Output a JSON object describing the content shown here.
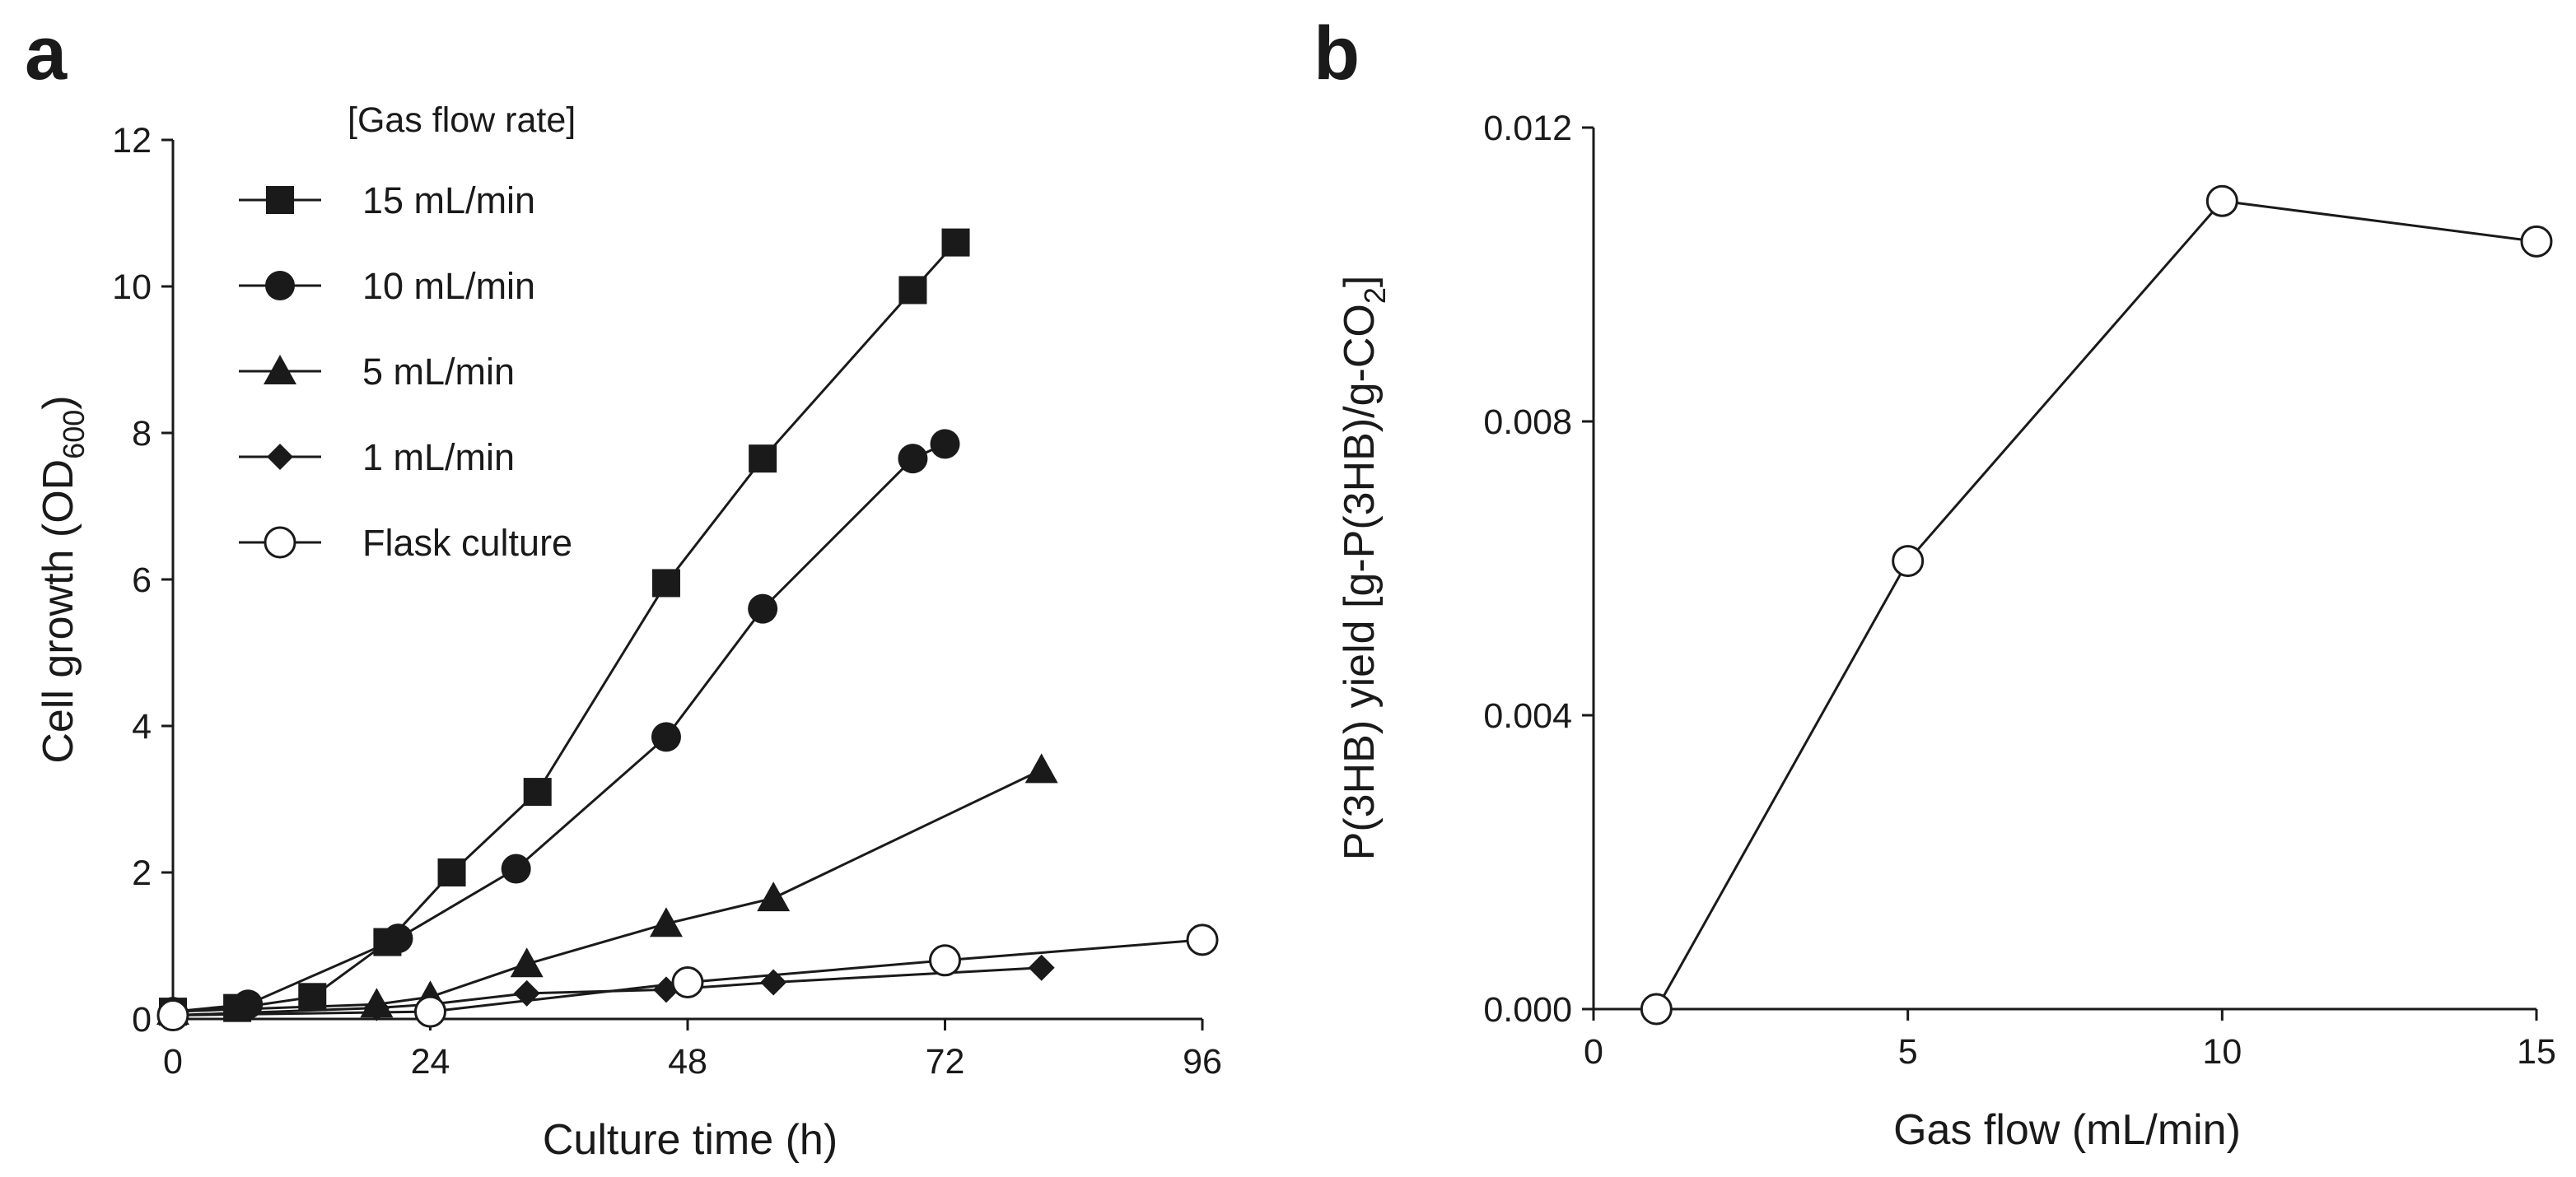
{
  "chart_data": [
    {
      "panel": "a",
      "type": "line",
      "title": "",
      "xlabel": "Culture time (h)",
      "ylabel": "Cell growth (OD",
      "ylabel_sub": "600",
      "ylabel_close": ")",
      "xlim": [
        0,
        96
      ],
      "ylim": [
        0,
        12
      ],
      "xticks": [
        "0",
        "24",
        "48",
        "72",
        "96"
      ],
      "yticks": [
        "0",
        "2",
        "4",
        "6",
        "8",
        "10",
        "12"
      ],
      "grid": false,
      "legend_title": "[Gas flow rate]",
      "legend_position": "top-left",
      "series": [
        {
          "name": "15 mL/min",
          "marker": "square",
          "x": [
            0,
            6,
            13,
            20,
            26,
            34,
            46,
            55,
            69,
            73
          ],
          "y": [
            0.1,
            0.15,
            0.3,
            1.05,
            2.0,
            3.1,
            5.95,
            7.65,
            9.95,
            10.6
          ]
        },
        {
          "name": "10 mL/min",
          "marker": "circle-filled",
          "x": [
            0,
            7,
            21,
            32,
            46,
            55,
            69,
            72
          ],
          "y": [
            0.1,
            0.2,
            1.1,
            2.05,
            3.85,
            5.6,
            7.65,
            7.85
          ]
        },
        {
          "name": "5 mL/min",
          "marker": "triangle",
          "x": [
            0,
            19,
            24,
            33,
            46,
            56,
            81
          ],
          "y": [
            0.1,
            0.2,
            0.3,
            0.75,
            1.3,
            1.65,
            3.4
          ]
        },
        {
          "name": "1 mL/min",
          "marker": "diamond",
          "x": [
            0,
            19,
            24,
            33,
            46,
            56,
            81
          ],
          "y": [
            0.05,
            0.15,
            0.2,
            0.35,
            0.4,
            0.5,
            0.7
          ]
        },
        {
          "name": "Flask culture",
          "marker": "circle-open",
          "x": [
            0,
            24,
            48,
            72,
            96
          ],
          "y": [
            0.05,
            0.1,
            0.5,
            0.8,
            1.08
          ]
        }
      ]
    },
    {
      "panel": "b",
      "type": "line",
      "title": "",
      "xlabel": "Gas flow (mL/min)",
      "ylabel": "P(3HB) yield [g-P(3HB)/g-CO",
      "ylabel_sub": "2",
      "ylabel_close": "]",
      "xlim": [
        0,
        15
      ],
      "ylim": [
        0,
        0.012
      ],
      "xticks": [
        "0",
        "5",
        "10",
        "15"
      ],
      "yticks": [
        "0.000",
        "0.004",
        "0.008",
        "0.012"
      ],
      "grid": false,
      "series": [
        {
          "name": "P(3HB) yield",
          "marker": "circle-open",
          "x": [
            1,
            5,
            10,
            15
          ],
          "y": [
            0.0,
            0.0061,
            0.011,
            0.01045
          ]
        }
      ]
    }
  ],
  "colors": {
    "ink": "#1a1a1a",
    "background": "#ffffff"
  }
}
